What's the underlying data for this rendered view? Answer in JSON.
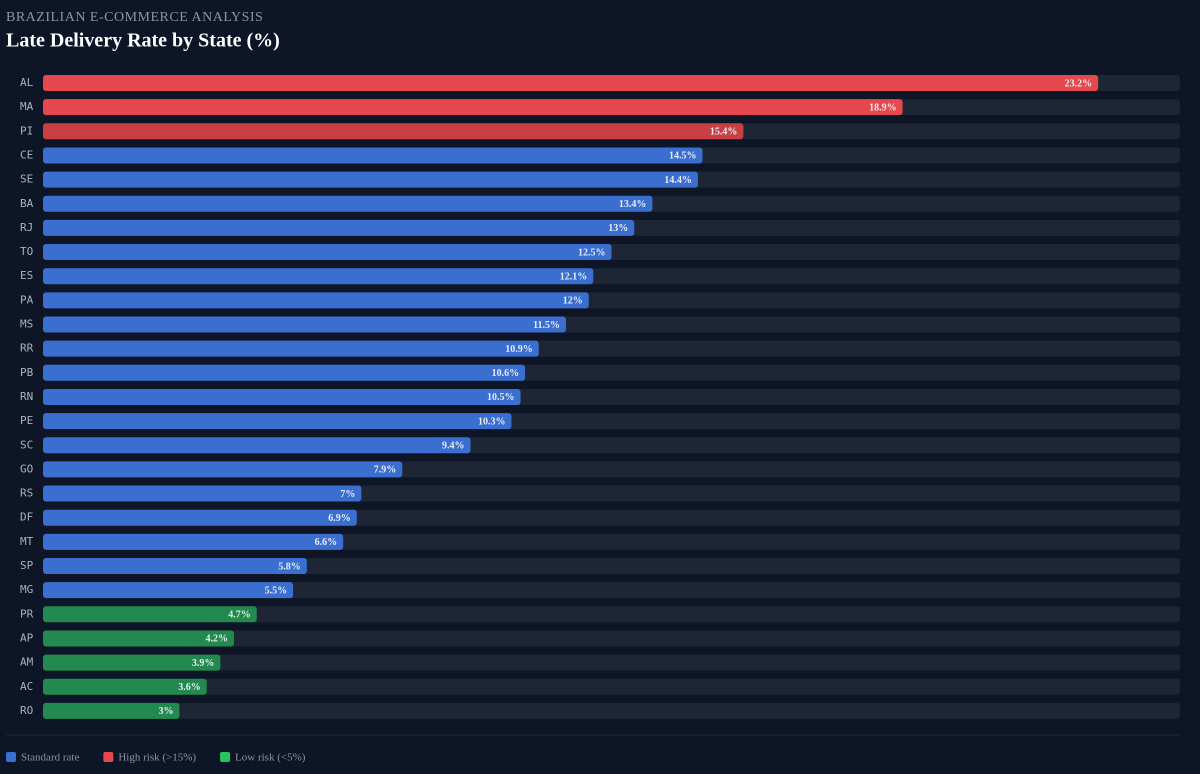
{
  "chart_data": {
    "type": "hbar",
    "subtitle": "BRAZILIAN E-COMMERCE ANALYSIS",
    "title": "Late Delivery Rate by State (%)",
    "categories": [
      "AL",
      "MA",
      "PI",
      "CE",
      "SE",
      "BA",
      "RJ",
      "TO",
      "ES",
      "PA",
      "MS",
      "RR",
      "PB",
      "RN",
      "PE",
      "SC",
      "GO",
      "RS",
      "DF",
      "MT",
      "SP",
      "MG",
      "PR",
      "AP",
      "AM",
      "AC",
      "RO"
    ],
    "values": [
      23.2,
      18.9,
      15.4,
      14.5,
      14.4,
      13.4,
      13,
      12.5,
      12.1,
      12,
      11.5,
      10.9,
      10.6,
      10.5,
      10.3,
      9.4,
      7.9,
      7,
      6.9,
      6.6,
      5.8,
      5.5,
      4.7,
      4.2,
      3.9,
      3.6,
      3
    ],
    "value_labels": [
      "23.2%",
      "18.9%",
      "15.4%",
      "14.5%",
      "14.4%",
      "13.4%",
      "13%",
      "12.5%",
      "12.1%",
      "12%",
      "11.5%",
      "10.9%",
      "10.6%",
      "10.5%",
      "10.3%",
      "9.4%",
      "7.9%",
      "7%",
      "6.9%",
      "6.6%",
      "5.8%",
      "5.5%",
      "4.7%",
      "4.2%",
      "3.9%",
      "3.6%",
      "3%"
    ],
    "colors": [
      "#e5484d",
      "#e5484d",
      "#c94044",
      "#3a6fd0",
      "#3a6fd0",
      "#3a6fd0",
      "#3a6fd0",
      "#3a6fd0",
      "#3a6fd0",
      "#3a6fd0",
      "#3a6fd0",
      "#3a6fd0",
      "#3a6fd0",
      "#3a6fd0",
      "#3a6fd0",
      "#3a6fd0",
      "#3a6fd0",
      "#3a6fd0",
      "#3a6fd0",
      "#3a6fd0",
      "#3a6fd0",
      "#3a6fd0",
      "#238a4f",
      "#238a4f",
      "#238a4f",
      "#238a4f",
      "#238a4f"
    ],
    "xlim": [
      0,
      25
    ],
    "legend": [
      {
        "label": "Standard rate",
        "color": "#3a6fd0"
      },
      {
        "label": "High risk (>15%)",
        "color": "#e5484d"
      },
      {
        "label": "Low risk (<5%)",
        "color": "#22c55e"
      }
    ]
  }
}
